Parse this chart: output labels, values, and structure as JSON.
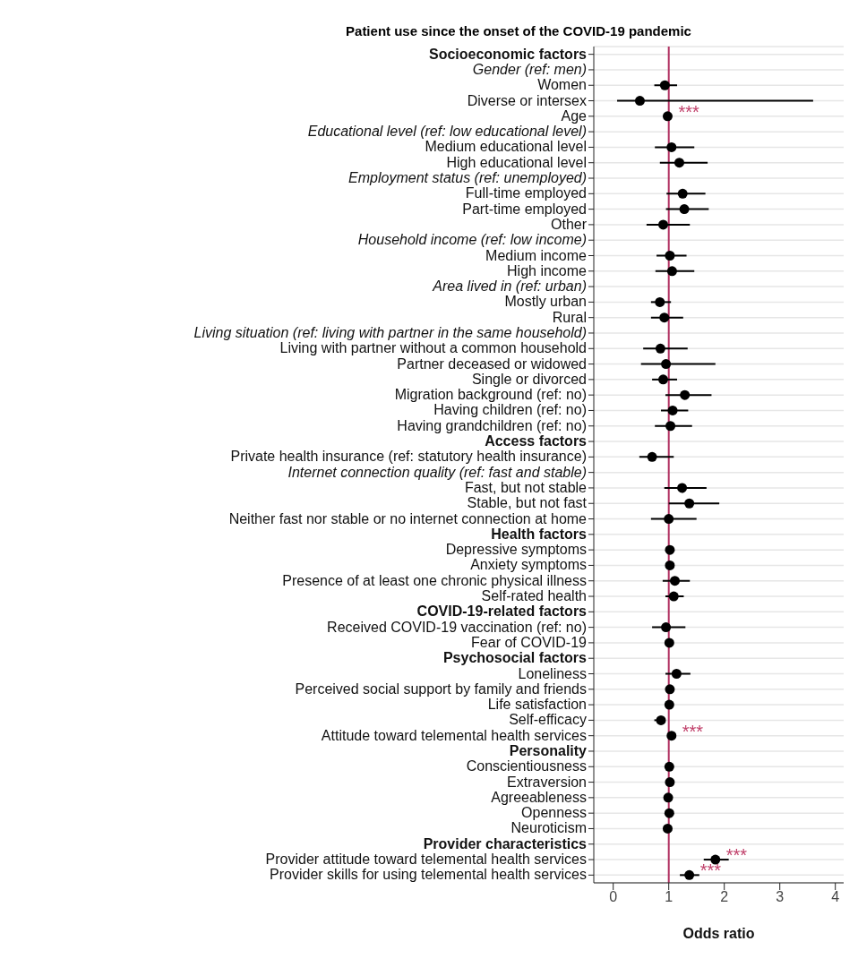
{
  "chart_data": {
    "type": "scatter",
    "orientation": "horizontal",
    "title": "Patient use since the onset of the COVID-19 pandemic",
    "xlabel": "Odds ratio",
    "categories": [
      "Socioeconomic factors",
      "Gender (ref: men)",
      "Women",
      "Diverse or intersex",
      "Age",
      "Educational level (ref: low educational level)",
      "Medium educational level",
      "High educational level",
      "Employment status (ref: unemployed)",
      "Full-time employed",
      "Part-time employed",
      "Other",
      "Household income (ref: low income)",
      "Medium income",
      "High income",
      "Area lived in (ref: urban)",
      "Mostly urban",
      "Rural",
      "Living situation (ref: living with partner in the same household)",
      "Living with partner without a common household",
      "Partner deceased or widowed",
      "Single or divorced",
      "Migration background (ref: no)",
      "Having children (ref: no)",
      "Having grandchildren (ref: no)",
      "Access factors",
      "Private health insurance (ref: statutory health insurance)",
      "Internet connection quality (ref: fast and stable)",
      "Fast, but not stable",
      "Stable, but not fast",
      "Neither fast nor stable or no internet connection at home",
      "Health factors",
      "Depressive symptoms",
      "Anxiety symptoms",
      "Presence of at least one chronic physical illness",
      "Self-rated health",
      "COVID-19-related factors",
      "Received COVID-19 vaccination (ref: no)",
      "Fear of COVID-19",
      "Psychosocial factors",
      "Loneliness",
      "Perceived social support by family and friends",
      "Life satisfaction",
      "Self-efficacy",
      "Attitude toward telemental health services",
      "Personality",
      "Conscientiousness",
      "Extraversion",
      "Agreeableness",
      "Openness",
      "Neuroticism",
      "Provider characteristics",
      "Provider attitude toward telemental health services",
      "Provider skills for using telemental health services"
    ],
    "values": [
      null,
      null,
      0.93,
      0.48,
      0.98,
      null,
      1.05,
      1.19,
      null,
      1.25,
      1.28,
      0.9,
      null,
      1.02,
      1.06,
      null,
      0.84,
      0.92,
      null,
      0.85,
      0.95,
      0.9,
      1.29,
      1.07,
      1.03,
      null,
      0.7,
      null,
      1.24,
      1.37,
      1.0,
      null,
      1.02,
      1.02,
      1.11,
      1.09,
      null,
      0.95,
      1.01,
      null,
      1.14,
      1.02,
      1.01,
      0.86,
      1.05,
      null,
      1.01,
      1.02,
      0.99,
      1.01,
      0.98,
      null,
      1.84,
      1.37
    ],
    "errors": [
      null,
      null,
      [
        0.74,
        1.15
      ],
      [
        0.07,
        3.6
      ],
      null,
      null,
      [
        0.75,
        1.46
      ],
      [
        0.84,
        1.7
      ],
      null,
      [
        0.96,
        1.66
      ],
      [
        0.95,
        1.72
      ],
      [
        0.6,
        1.38
      ],
      null,
      [
        0.78,
        1.32
      ],
      [
        0.76,
        1.46
      ],
      null,
      [
        0.68,
        1.04
      ],
      [
        0.68,
        1.26
      ],
      null,
      [
        0.54,
        1.34
      ],
      [
        0.5,
        1.84
      ],
      [
        0.7,
        1.15
      ],
      [
        0.94,
        1.77
      ],
      [
        0.86,
        1.35
      ],
      [
        0.75,
        1.42
      ],
      null,
      [
        0.47,
        1.09
      ],
      null,
      [
        0.92,
        1.68
      ],
      [
        1.0,
        1.91
      ],
      [
        0.68,
        1.5
      ],
      null,
      null,
      null,
      [
        0.89,
        1.38
      ],
      [
        0.94,
        1.27
      ],
      null,
      [
        0.7,
        1.3
      ],
      null,
      null,
      [
        0.94,
        1.39
      ],
      null,
      null,
      [
        0.74,
        0.94
      ],
      null,
      null,
      null,
      null,
      null,
      null,
      null,
      null,
      [
        1.63,
        2.08
      ],
      [
        1.2,
        1.55
      ]
    ],
    "color": "#000000",
    "marker": "circle",
    "grid": "y",
    "xlim": [
      -0.35,
      4.15
    ],
    "xticks": [
      0,
      1,
      2,
      3,
      4
    ],
    "ref_lines": [
      {
        "axis": "x",
        "value": 1,
        "color": "#b03060"
      }
    ],
    "annotations": [
      {
        "text": "***",
        "x": 0.98,
        "y": "Age"
      },
      {
        "text": "***",
        "x": 1.05,
        "y": "Attitude toward telemental health services"
      },
      {
        "text": "***",
        "x": 1.84,
        "y": "Provider attitude toward telemental health services"
      },
      {
        "text": "***",
        "x": 1.37,
        "y": "Provider skills for using telemental health services"
      }
    ]
  }
}
